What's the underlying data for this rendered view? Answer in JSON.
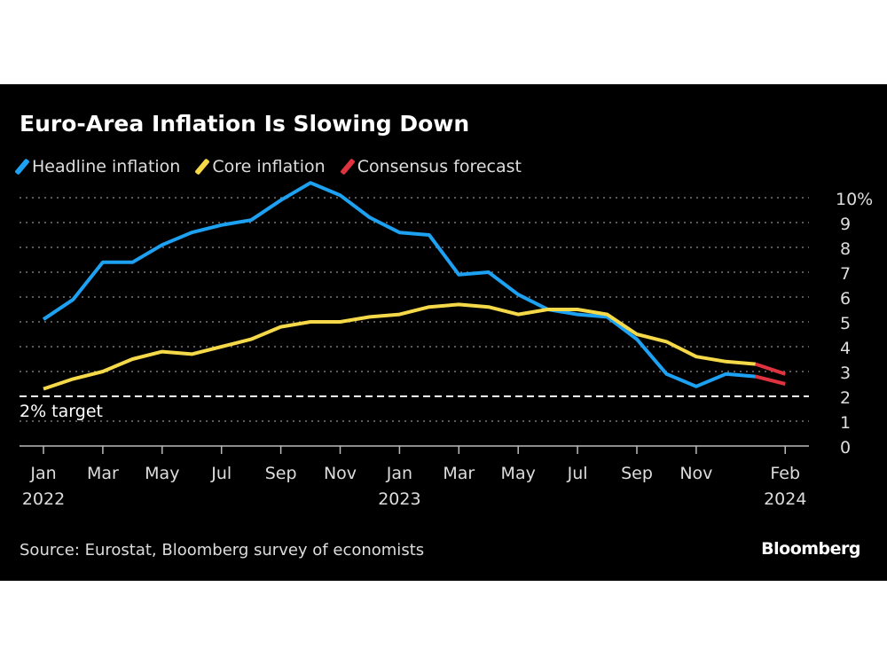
{
  "chart_data": {
    "type": "line",
    "title": "Euro-Area Inflation Is Slowing Down",
    "source": "Source: Eurostat, Bloomberg survey of economists",
    "brand": "Bloomberg",
    "x": [
      "2022-01",
      "2022-02",
      "2022-03",
      "2022-04",
      "2022-05",
      "2022-06",
      "2022-07",
      "2022-08",
      "2022-09",
      "2022-10",
      "2022-11",
      "2022-12",
      "2023-01",
      "2023-02",
      "2023-03",
      "2023-04",
      "2023-05",
      "2023-06",
      "2023-07",
      "2023-08",
      "2023-09",
      "2023-10",
      "2023-11",
      "2023-12",
      "2024-01",
      "2024-02"
    ],
    "series": [
      {
        "name": "Headline inflation",
        "color": "#1da1f2",
        "values": [
          5.1,
          5.9,
          7.4,
          7.4,
          8.1,
          8.6,
          8.9,
          9.1,
          9.9,
          10.6,
          10.1,
          9.2,
          8.6,
          8.5,
          6.9,
          7.0,
          6.1,
          5.5,
          5.3,
          5.2,
          4.3,
          2.9,
          2.4,
          2.9,
          2.8,
          null
        ]
      },
      {
        "name": "Core inflation",
        "color": "#f5d949",
        "values": [
          2.3,
          2.7,
          3.0,
          3.5,
          3.8,
          3.7,
          4.0,
          4.3,
          4.8,
          5.0,
          5.0,
          5.2,
          5.3,
          5.6,
          5.7,
          5.6,
          5.3,
          5.5,
          5.5,
          5.3,
          4.5,
          4.2,
          3.6,
          3.4,
          3.3,
          null
        ]
      },
      {
        "name": "Consensus forecast",
        "color": "#e0333f",
        "headline": [
          [
            "2024-01",
            2.8
          ],
          [
            "2024-02",
            2.5
          ]
        ],
        "core": [
          [
            "2024-01",
            3.3
          ],
          [
            "2024-02",
            2.9
          ]
        ]
      }
    ],
    "xticks": [
      {
        "label": "Jan",
        "year": "2022",
        "index": 0
      },
      {
        "label": "Mar",
        "index": 2
      },
      {
        "label": "May",
        "index": 4
      },
      {
        "label": "Jul",
        "index": 6
      },
      {
        "label": "Sep",
        "index": 8
      },
      {
        "label": "Nov",
        "index": 10
      },
      {
        "label": "Jan",
        "year": "2023",
        "index": 12
      },
      {
        "label": "Mar",
        "index": 14
      },
      {
        "label": "May",
        "index": 16
      },
      {
        "label": "Jul",
        "index": 18
      },
      {
        "label": "Sep",
        "index": 20
      },
      {
        "label": "Nov",
        "index": 22
      },
      {
        "label": "Feb",
        "year": "2024",
        "index": 25
      }
    ],
    "yticks": [
      "0",
      "1",
      "2",
      "3",
      "4",
      "5",
      "6",
      "7",
      "8",
      "9",
      "10%"
    ],
    "ylim": [
      0,
      10
    ],
    "grid": true,
    "reference_line": {
      "value": 2,
      "label": "2% target"
    },
    "legend_position": "top-left"
  }
}
